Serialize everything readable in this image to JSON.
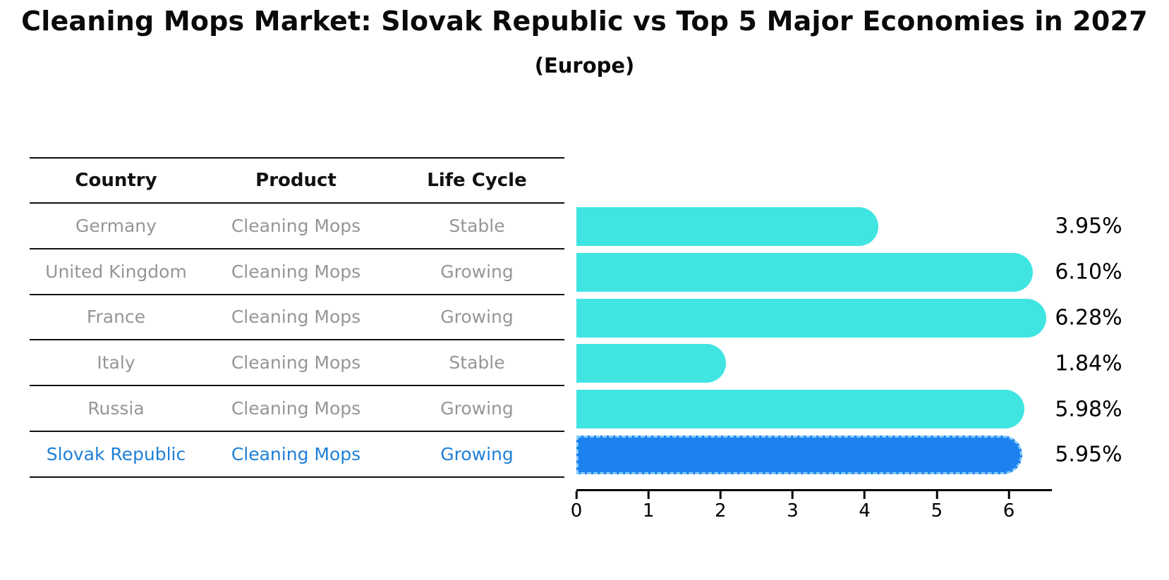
{
  "header": {
    "title": "Cleaning Mops Market: Slovak Republic vs Top 5 Major Economies in 2027",
    "subtitle": "(Europe)"
  },
  "table": {
    "columns": [
      "Country",
      "Product",
      "Life Cycle"
    ],
    "rows": [
      {
        "country": "Germany",
        "product": "Cleaning Mops",
        "life_cycle": "Stable",
        "highlight": false
      },
      {
        "country": "United Kingdom",
        "product": "Cleaning Mops",
        "life_cycle": "Growing",
        "highlight": false
      },
      {
        "country": "France",
        "product": "Cleaning Mops",
        "life_cycle": "Growing",
        "highlight": false
      },
      {
        "country": "Italy",
        "product": "Cleaning Mops",
        "life_cycle": "Stable",
        "highlight": false
      },
      {
        "country": "Russia",
        "product": "Cleaning Mops",
        "life_cycle": "Growing",
        "highlight": true
      }
    ],
    "highlight_row": {
      "country": "Slovak Republic",
      "product": "Cleaning Mops",
      "life_cycle": "Growing"
    }
  },
  "chart_data": {
    "type": "bar",
    "orientation": "horizontal",
    "categories": [
      "Germany",
      "United Kingdom",
      "France",
      "Italy",
      "Russia",
      "Slovak Republic"
    ],
    "values": [
      3.95,
      6.1,
      6.28,
      1.84,
      5.98,
      5.95
    ],
    "value_labels": [
      "3.95%",
      "6.10%",
      "6.28%",
      "1.84%",
      "5.98%",
      "5.95%"
    ],
    "highlight_index": 5,
    "xticks": [
      "0",
      "1",
      "2",
      "3",
      "4",
      "5",
      "6"
    ],
    "xlim": [
      0,
      6.6
    ],
    "grid": false,
    "legend": "none",
    "title": "Cleaning Mops Market: Slovak Republic vs Top 5 Major Economies in 2027 (Europe)",
    "xlabel": "",
    "ylabel": ""
  },
  "colors": {
    "bar_cyan": "#40E5E1",
    "bar_highlight": "#1B82F0",
    "highlight_dash": "#86CBF8",
    "table_text": "#969696",
    "highlight_text": "#1E7FD6",
    "axis": "#000000",
    "title_text": "#0A0A0A"
  }
}
